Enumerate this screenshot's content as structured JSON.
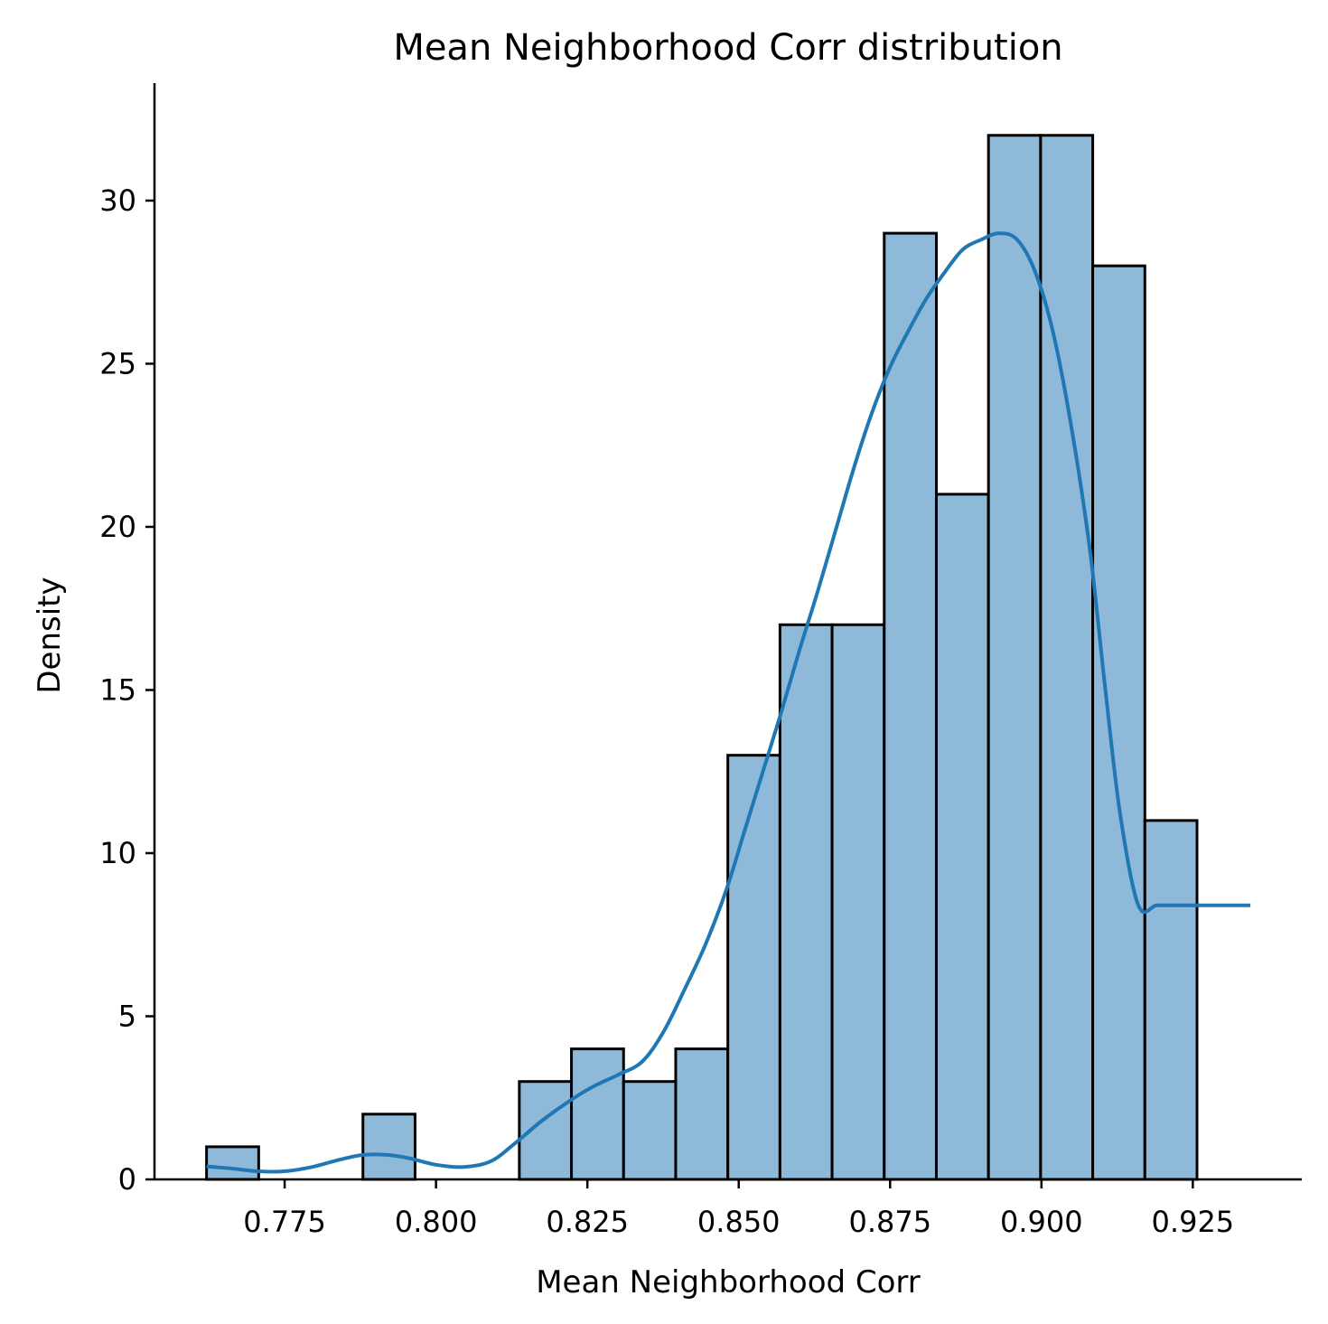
{
  "chart_data": {
    "type": "bar",
    "title": "Mean Neighborhood Corr distribution",
    "xlabel": "Mean Neighborhood Corr",
    "ylabel": "Density",
    "xlim": [
      0.7535,
      0.943
    ],
    "ylim": [
      0,
      33.6
    ],
    "xticks": [
      0.775,
      0.8,
      0.825,
      0.85,
      0.875,
      0.9,
      0.925
    ],
    "xtick_labels": [
      "0.775",
      "0.800",
      "0.825",
      "0.850",
      "0.875",
      "0.900",
      "0.925"
    ],
    "yticks": [
      0,
      5,
      10,
      15,
      20,
      25,
      30
    ],
    "ytick_labels": [
      "0",
      "5",
      "10",
      "15",
      "20",
      "25",
      "30"
    ],
    "bin_start": 0.7621,
    "bin_width": 0.00861,
    "counts": [
      1,
      0,
      0,
      2,
      0,
      0,
      3,
      4,
      3,
      4,
      13,
      17,
      17,
      29,
      21,
      32,
      32,
      28,
      11
    ],
    "bar_fill": "#8fb9d9",
    "bar_edge": "#000000",
    "kde": {
      "color": "#1f77b4",
      "x": [
        0.7621,
        0.7665,
        0.7706,
        0.775,
        0.7795,
        0.784,
        0.788,
        0.792,
        0.7955,
        0.8,
        0.8045,
        0.809,
        0.813,
        0.8175,
        0.822,
        0.826,
        0.83,
        0.834,
        0.8375,
        0.841,
        0.8445,
        0.848,
        0.851,
        0.854,
        0.857,
        0.86,
        0.863,
        0.866,
        0.869,
        0.872,
        0.875,
        0.878,
        0.881,
        0.884,
        0.887,
        0.89,
        0.893,
        0.896,
        0.899,
        0.902,
        0.905,
        0.908,
        0.9105,
        0.913,
        0.916,
        0.919,
        0.922,
        0.925,
        0.928,
        0.931,
        0.9345
      ],
      "y": [
        0.4,
        0.33,
        0.25,
        0.25,
        0.38,
        0.6,
        0.75,
        0.75,
        0.65,
        0.45,
        0.38,
        0.55,
        1.1,
        1.8,
        2.4,
        2.85,
        3.2,
        3.6,
        4.5,
        5.8,
        7.2,
        8.9,
        10.7,
        12.5,
        14.3,
        16.2,
        18.0,
        19.9,
        21.8,
        23.5,
        24.9,
        26.0,
        27.0,
        27.8,
        28.5,
        28.8,
        29.0,
        28.8,
        27.8,
        25.9,
        23.0,
        19.3,
        15.1,
        11.2,
        8.4,
        8.4,
        8.4,
        8.4,
        8.4,
        8.4,
        8.4
      ]
    }
  }
}
